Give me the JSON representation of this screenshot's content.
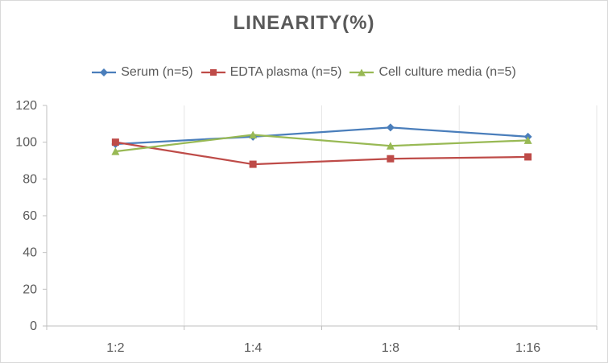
{
  "chart_data": {
    "type": "line",
    "title": "LINEARITY(%)",
    "xlabel": "",
    "ylabel": "",
    "categories": [
      "1:2",
      "1:4",
      "1:8",
      "1:16"
    ],
    "ylim": [
      0,
      120
    ],
    "yticks": [
      0,
      20,
      40,
      60,
      80,
      100,
      120
    ],
    "grid": "vertical",
    "legend_position": "top",
    "series": [
      {
        "name": "Serum (n=5)",
        "color": "#4a7ebb",
        "marker": "diamond",
        "values": [
          99,
          103,
          108,
          103
        ]
      },
      {
        "name": "EDTA plasma (n=5)",
        "color": "#be4b48",
        "marker": "square",
        "values": [
          100,
          88,
          91,
          92
        ]
      },
      {
        "name": "Cell culture media (n=5)",
        "color": "#98b954",
        "marker": "triangle",
        "values": [
          95,
          104,
          98,
          101
        ]
      }
    ]
  }
}
